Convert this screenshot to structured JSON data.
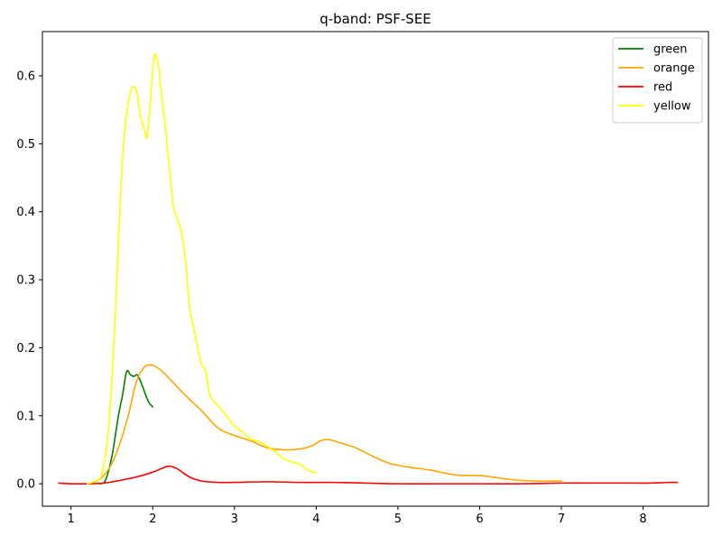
{
  "chart_data": {
    "type": "line",
    "title": "q-band: PSF-SEE",
    "xlabel": "",
    "ylabel": "",
    "xlim": [
      0.65,
      8.8
    ],
    "ylim": [
      -0.033,
      0.665
    ],
    "xticks": [
      1,
      2,
      3,
      4,
      5,
      6,
      7,
      8
    ],
    "yticks": [
      0.0,
      0.1,
      0.2,
      0.3,
      0.4,
      0.5,
      0.6
    ],
    "xtick_labels": [
      "1",
      "2",
      "3",
      "4",
      "5",
      "6",
      "7",
      "8"
    ],
    "ytick_labels": [
      "0.0",
      "0.1",
      "0.2",
      "0.3",
      "0.4",
      "0.5",
      "0.6"
    ],
    "grid": false,
    "legend_position": "top-right",
    "series": [
      {
        "name": "green",
        "color": "#008000",
        "points": [
          [
            1.35,
            0.0
          ],
          [
            1.42,
            0.005
          ],
          [
            1.5,
            0.04
          ],
          [
            1.58,
            0.1
          ],
          [
            1.63,
            0.13
          ],
          [
            1.68,
            0.165
          ],
          [
            1.73,
            0.16
          ],
          [
            1.77,
            0.158
          ],
          [
            1.81,
            0.16
          ],
          [
            1.86,
            0.148
          ],
          [
            1.9,
            0.135
          ],
          [
            1.95,
            0.12
          ],
          [
            2.0,
            0.113
          ]
        ]
      },
      {
        "name": "orange",
        "color": "#FFA500",
        "points": [
          [
            1.2,
            0.0
          ],
          [
            1.3,
            0.003
          ],
          [
            1.4,
            0.012
          ],
          [
            1.5,
            0.03
          ],
          [
            1.6,
            0.06
          ],
          [
            1.7,
            0.1
          ],
          [
            1.8,
            0.15
          ],
          [
            1.9,
            0.172
          ],
          [
            2.0,
            0.174
          ],
          [
            2.1,
            0.167
          ],
          [
            2.2,
            0.155
          ],
          [
            2.4,
            0.13
          ],
          [
            2.6,
            0.107
          ],
          [
            2.8,
            0.082
          ],
          [
            3.0,
            0.071
          ],
          [
            3.2,
            0.063
          ],
          [
            3.4,
            0.053
          ],
          [
            3.6,
            0.05
          ],
          [
            3.8,
            0.051
          ],
          [
            3.95,
            0.056
          ],
          [
            4.05,
            0.063
          ],
          [
            4.15,
            0.065
          ],
          [
            4.3,
            0.06
          ],
          [
            4.5,
            0.052
          ],
          [
            4.7,
            0.04
          ],
          [
            4.9,
            0.03
          ],
          [
            5.1,
            0.025
          ],
          [
            5.4,
            0.02
          ],
          [
            5.7,
            0.013
          ],
          [
            6.0,
            0.012
          ],
          [
            6.15,
            0.01
          ],
          [
            6.4,
            0.006
          ],
          [
            6.7,
            0.004
          ],
          [
            7.0,
            0.004
          ]
        ]
      },
      {
        "name": "red",
        "color": "#FF0000",
        "points": [
          [
            0.85,
            0.001
          ],
          [
            1.0,
            0.0
          ],
          [
            1.2,
            0.0
          ],
          [
            1.4,
            0.001
          ],
          [
            1.6,
            0.005
          ],
          [
            1.8,
            0.01
          ],
          [
            2.0,
            0.017
          ],
          [
            2.1,
            0.022
          ],
          [
            2.2,
            0.026
          ],
          [
            2.3,
            0.022
          ],
          [
            2.45,
            0.01
          ],
          [
            2.6,
            0.004
          ],
          [
            2.8,
            0.002
          ],
          [
            3.0,
            0.002
          ],
          [
            3.4,
            0.003
          ],
          [
            3.8,
            0.002
          ],
          [
            4.2,
            0.002
          ],
          [
            4.6,
            0.001
          ],
          [
            5.0,
            0.0
          ],
          [
            5.5,
            0.0
          ],
          [
            6.0,
            0.0
          ],
          [
            6.5,
            0.0
          ],
          [
            7.0,
            0.001
          ],
          [
            7.3,
            0.001
          ],
          [
            7.6,
            0.001
          ],
          [
            7.9,
            0.001
          ],
          [
            8.1,
            0.001
          ],
          [
            8.3,
            0.002
          ],
          [
            8.42,
            0.002
          ]
        ]
      },
      {
        "name": "yellow",
        "color": "#FFFF00",
        "points": [
          [
            1.2,
            0.0
          ],
          [
            1.3,
            0.004
          ],
          [
            1.38,
            0.015
          ],
          [
            1.45,
            0.07
          ],
          [
            1.5,
            0.15
          ],
          [
            1.55,
            0.27
          ],
          [
            1.6,
            0.41
          ],
          [
            1.65,
            0.51
          ],
          [
            1.7,
            0.56
          ],
          [
            1.75,
            0.583
          ],
          [
            1.8,
            0.578
          ],
          [
            1.85,
            0.54
          ],
          [
            1.9,
            0.52
          ],
          [
            1.93,
            0.51
          ],
          [
            1.97,
            0.56
          ],
          [
            2.0,
            0.61
          ],
          [
            2.03,
            0.632
          ],
          [
            2.07,
            0.615
          ],
          [
            2.1,
            0.58
          ],
          [
            2.15,
            0.53
          ],
          [
            2.2,
            0.47
          ],
          [
            2.25,
            0.41
          ],
          [
            2.3,
            0.39
          ],
          [
            2.35,
            0.37
          ],
          [
            2.4,
            0.33
          ],
          [
            2.45,
            0.26
          ],
          [
            2.5,
            0.23
          ],
          [
            2.55,
            0.2
          ],
          [
            2.6,
            0.175
          ],
          [
            2.65,
            0.165
          ],
          [
            2.7,
            0.13
          ],
          [
            2.8,
            0.115
          ],
          [
            2.9,
            0.1
          ],
          [
            3.0,
            0.085
          ],
          [
            3.1,
            0.076
          ],
          [
            3.2,
            0.066
          ],
          [
            3.3,
            0.062
          ],
          [
            3.4,
            0.055
          ],
          [
            3.5,
            0.047
          ],
          [
            3.6,
            0.037
          ],
          [
            3.7,
            0.032
          ],
          [
            3.8,
            0.029
          ],
          [
            3.9,
            0.02
          ],
          [
            4.0,
            0.016
          ]
        ]
      }
    ]
  }
}
